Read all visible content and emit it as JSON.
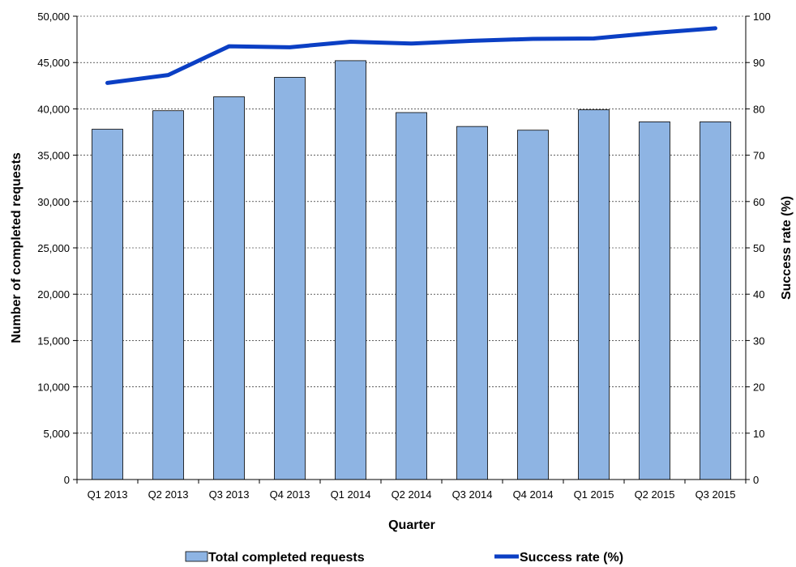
{
  "chart_data": {
    "type": "bar",
    "categories": [
      "Q1 2013",
      "Q2 2013",
      "Q3 2013",
      "Q4 2013",
      "Q1 2014",
      "Q2 2014",
      "Q3 2014",
      "Q4 2014",
      "Q1 2015",
      "Q2 2015",
      "Q3 2015"
    ],
    "series": [
      {
        "name": "Total completed requests",
        "type": "bar",
        "axis": "left",
        "color": "#8EB4E3",
        "values": [
          37800,
          39800,
          41300,
          43400,
          45200,
          39600,
          38100,
          37700,
          39900,
          38600,
          38600
        ]
      },
      {
        "name": "Success rate (%)",
        "type": "line",
        "axis": "right",
        "color": "#0B3FC4",
        "values": [
          85.6,
          87.3,
          93.5,
          93.3,
          94.5,
          94.1,
          94.7,
          95.1,
          95.2,
          96.4,
          97.4
        ]
      }
    ],
    "xlabel": "Quarter",
    "ylabel": "Number of completed requests",
    "y2label": "Success rate (%)",
    "ylim": [
      0,
      50000
    ],
    "y2lim": [
      0,
      100
    ],
    "yticks": [
      "0",
      "5,000",
      "10,000",
      "15,000",
      "20,000",
      "25,000",
      "30,000",
      "35,000",
      "40,000",
      "45,000",
      "50,000"
    ],
    "y2ticks": [
      "0",
      "10",
      "20",
      "30",
      "40",
      "50",
      "60",
      "70",
      "80",
      "90",
      "100"
    ],
    "grid": true,
    "legend_position": "bottom"
  }
}
